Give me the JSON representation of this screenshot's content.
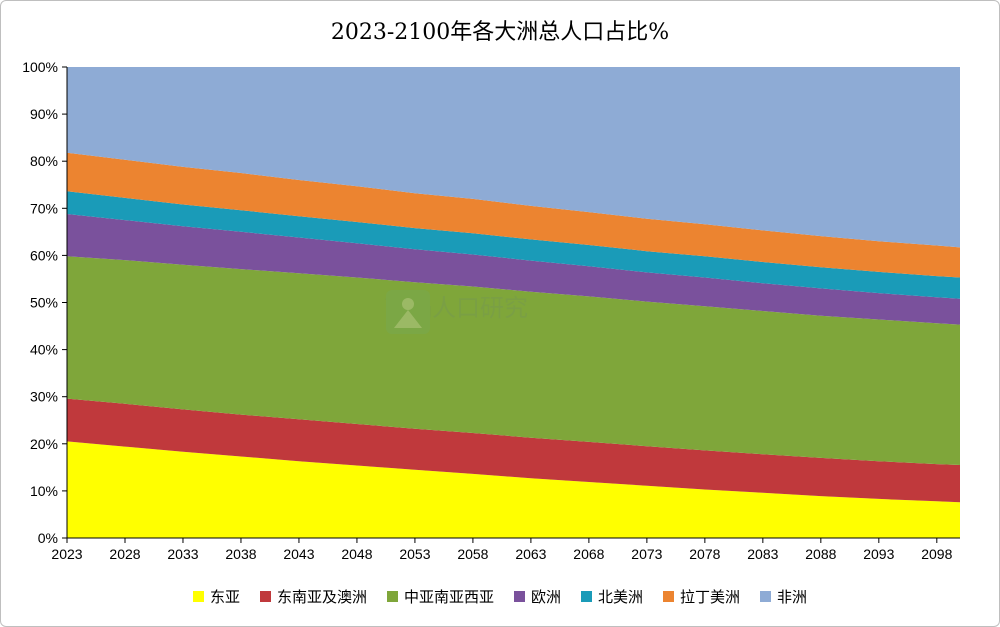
{
  "chart_data": {
    "type": "area",
    "stacked": true,
    "title": "2023-2100年各大洲总人口占比%",
    "x": [
      2023,
      2028,
      2033,
      2038,
      2043,
      2048,
      2053,
      2058,
      2063,
      2068,
      2073,
      2078,
      2083,
      2088,
      2093,
      2098,
      2100
    ],
    "x_tick_labels": [
      "2023",
      "2028",
      "2033",
      "2038",
      "2043",
      "2048",
      "2053",
      "2058",
      "2063",
      "2068",
      "2073",
      "2078",
      "2083",
      "2088",
      "2093",
      "2098"
    ],
    "y_tick_labels": [
      "0%",
      "10%",
      "20%",
      "30%",
      "40%",
      "50%",
      "60%",
      "70%",
      "80%",
      "90%",
      "100%"
    ],
    "ylim": [
      0,
      100
    ],
    "grid": false,
    "legend_position": "bottom",
    "series": [
      {
        "name": "东亚",
        "color": "#ffff00",
        "values": [
          20.5,
          19.4,
          18.3,
          17.3,
          16.3,
          15.4,
          14.5,
          13.6,
          12.7,
          11.9,
          11.1,
          10.3,
          9.6,
          8.9,
          8.3,
          7.8,
          7.6
        ]
      },
      {
        "name": "东南亚及澳洲",
        "color": "#c0393c",
        "values": [
          9.1,
          9.1,
          9.0,
          8.9,
          8.9,
          8.8,
          8.7,
          8.7,
          8.6,
          8.5,
          8.4,
          8.3,
          8.2,
          8.1,
          8.0,
          7.9,
          7.9
        ]
      },
      {
        "name": "中亚南亚西亚",
        "color": "#7fa63a",
        "values": [
          30.2,
          30.5,
          30.7,
          30.9,
          31.0,
          31.1,
          31.1,
          31.1,
          31.0,
          30.9,
          30.7,
          30.6,
          30.4,
          30.2,
          30.1,
          29.9,
          29.8
        ]
      },
      {
        "name": "欧洲",
        "color": "#7a519c",
        "values": [
          9.0,
          8.5,
          8.2,
          7.9,
          7.6,
          7.3,
          7.0,
          6.8,
          6.6,
          6.4,
          6.2,
          6.1,
          5.9,
          5.8,
          5.6,
          5.5,
          5.5
        ]
      },
      {
        "name": "北美洲",
        "color": "#1a9bb8",
        "values": [
          4.8,
          4.7,
          4.6,
          4.6,
          4.5,
          4.5,
          4.5,
          4.5,
          4.5,
          4.5,
          4.5,
          4.5,
          4.5,
          4.5,
          4.5,
          4.5,
          4.5
        ]
      },
      {
        "name": "拉丁美洲",
        "color": "#ec8430",
        "values": [
          8.2,
          8.1,
          8.0,
          7.9,
          7.7,
          7.6,
          7.4,
          7.3,
          7.1,
          7.0,
          6.9,
          6.8,
          6.7,
          6.6,
          6.5,
          6.5,
          6.4
        ]
      },
      {
        "name": "非洲",
        "color": "#8eabd5",
        "values": [
          18.2,
          19.7,
          21.2,
          22.5,
          24.0,
          25.3,
          26.8,
          28.0,
          29.5,
          30.8,
          32.2,
          33.4,
          34.7,
          35.9,
          37.0,
          37.9,
          38.3
        ]
      }
    ]
  },
  "watermark": {
    "text": "育娲人口研究"
  }
}
